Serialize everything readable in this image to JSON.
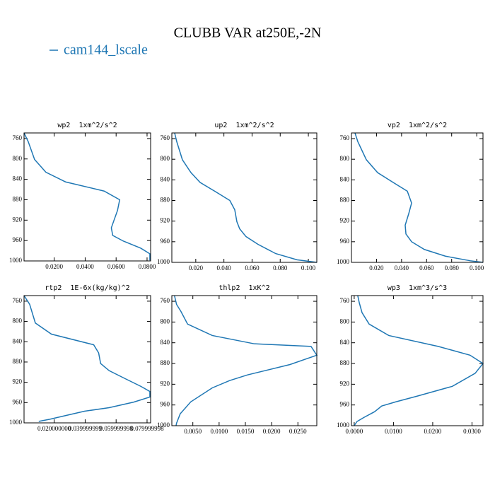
{
  "title": "CLUBB VAR at250E,-2N",
  "legend": {
    "label": "cam144_lscale",
    "color": "#1f77b4"
  },
  "chart_data": [
    {
      "type": "line",
      "title": "wp2  1xm^2/s^2",
      "color": "#1f77b4",
      "x": [
        0.0005,
        0.0032,
        0.0073,
        0.0146,
        0.0273,
        0.0523,
        0.0623,
        0.0609,
        0.0569,
        0.0578,
        0.0646,
        0.0759,
        0.0818,
        0.0818
      ],
      "values": [
        749,
        766,
        801,
        826,
        845,
        863,
        880,
        901,
        935,
        950,
        961,
        975,
        986,
        999
      ],
      "xlim": [
        0.0005,
        0.0823
      ],
      "ylim": [
        1000,
        749
      ],
      "xticks": [
        {
          "value": 0.02,
          "label": "0.0200"
        },
        {
          "value": 0.04,
          "label": "0.0400"
        },
        {
          "value": 0.06,
          "label": "0.0600"
        },
        {
          "value": 0.08,
          "label": "0.0800"
        }
      ],
      "yticks": [
        760,
        800,
        840,
        880,
        920,
        960,
        1000
      ]
    },
    {
      "type": "line",
      "title": "up2  1xm^2/s^2",
      "color": "#1f77b4",
      "x": [
        0.005,
        0.0065,
        0.0105,
        0.0166,
        0.0231,
        0.0341,
        0.0442,
        0.0477,
        0.0492,
        0.0512,
        0.0557,
        0.0642,
        0.0768,
        0.0919,
        0.106
      ],
      "values": [
        749,
        766,
        801,
        826,
        845,
        863,
        880,
        898,
        921,
        935,
        950,
        965,
        983,
        995,
        1000
      ],
      "xlim": [
        0.003,
        0.106
      ],
      "ylim": [
        1000,
        749
      ],
      "xticks": [
        {
          "value": 0.02,
          "label": "0.020"
        },
        {
          "value": 0.04,
          "label": "0.040"
        },
        {
          "value": 0.06,
          "label": "0.060"
        },
        {
          "value": 0.08,
          "label": "0.080"
        },
        {
          "value": 0.1,
          "label": "0.100"
        }
      ],
      "yticks": [
        760,
        800,
        840,
        880,
        920,
        960,
        1000
      ]
    },
    {
      "type": "line",
      "title": "vp2  1xm^2/s^2",
      "color": "#1f77b4",
      "x": [
        0.0028,
        0.0051,
        0.0119,
        0.0209,
        0.0333,
        0.0446,
        0.048,
        0.0458,
        0.0429,
        0.0435,
        0.048,
        0.0582,
        0.075,
        0.095,
        0.105
      ],
      "values": [
        749,
        766,
        801,
        826,
        845,
        862,
        885,
        905,
        928,
        945,
        960,
        975,
        988,
        997,
        1000
      ],
      "xlim": [
        0,
        0.105
      ],
      "ylim": [
        1000,
        749
      ],
      "xticks": [
        {
          "value": 0.02,
          "label": "0.020"
        },
        {
          "value": 0.04,
          "label": "0.040"
        },
        {
          "value": 0.06,
          "label": "0.060"
        },
        {
          "value": 0.08,
          "label": "0.080"
        },
        {
          "value": 0.1,
          "label": "0.100"
        }
      ],
      "yticks": [
        760,
        800,
        840,
        880,
        920,
        960,
        1000
      ]
    },
    {
      "type": "line",
      "title": "rtp2  1E-6x(kg/kg)^2",
      "color": "#1f77b4",
      "x": [
        0.0005,
        0.0041,
        0.0078,
        0.0182,
        0.0455,
        0.0487,
        0.05,
        0.0555,
        0.066,
        0.076,
        0.0818,
        0.0818,
        0.0714,
        0.0555,
        0.0396,
        0.0282,
        0.0169,
        0.01
      ],
      "values": [
        749,
        766,
        803,
        825,
        846,
        862,
        883,
        897,
        913,
        928,
        938,
        949,
        959,
        970,
        977,
        985,
        993,
        997
      ],
      "xlim": [
        0.0005,
        0.0823
      ],
      "ylim": [
        1000,
        749
      ],
      "xticks": [
        {
          "value": 0.02,
          "label": "0.020000000"
        },
        {
          "value": 0.04,
          "label": "0.039999999"
        },
        {
          "value": 0.06,
          "label": "0.059999998"
        },
        {
          "value": 0.08,
          "label": "0.079999998"
        }
      ],
      "yticks": [
        760,
        800,
        840,
        880,
        920,
        960,
        1000
      ]
    },
    {
      "type": "line",
      "title": "thlp2  1xK^2",
      "color": "#1f77b4",
      "x": [
        0.0015,
        0.0019,
        0.0027,
        0.004,
        0.0087,
        0.0167,
        0.0275,
        0.0286,
        0.0235,
        0.0154,
        0.012,
        0.0087,
        0.0046,
        0.0026,
        0.0019,
        0.0018
      ],
      "values": [
        749,
        766,
        779,
        804,
        826,
        842,
        847,
        864,
        882,
        902,
        913,
        927,
        954,
        977,
        995,
        1000
      ],
      "xlim": [
        0.001,
        0.0286
      ],
      "ylim": [
        1000,
        749
      ],
      "xticks": [
        {
          "value": 0.005,
          "label": "0.0050"
        },
        {
          "value": 0.01,
          "label": "0.0100"
        },
        {
          "value": 0.015,
          "label": "0.0150"
        },
        {
          "value": 0.02,
          "label": "0.0200"
        },
        {
          "value": 0.025,
          "label": "0.0250"
        }
      ],
      "yticks": [
        760,
        800,
        840,
        880,
        920,
        960,
        1000
      ]
    },
    {
      "type": "line",
      "title": "wp3  1xm^3/s^3",
      "color": "#1f77b4",
      "x": [
        0.0009,
        0.0013,
        0.002,
        0.0038,
        0.0088,
        0.0214,
        0.0295,
        0.0328,
        0.0308,
        0.025,
        0.016,
        0.0106,
        0.007,
        0.0052,
        0.0025,
        0.0007,
        0
      ],
      "values": [
        749,
        763,
        782,
        804,
        826,
        847,
        864,
        880,
        899,
        924,
        943,
        954,
        962,
        973,
        984,
        992,
        1000
      ],
      "xlim": [
        -0.0007,
        0.0328
      ],
      "ylim": [
        1000,
        749
      ],
      "xticks": [
        {
          "value": 0,
          "label": "0.0000"
        },
        {
          "value": 0.01,
          "label": "0.0100"
        },
        {
          "value": 0.02,
          "label": "0.0200"
        },
        {
          "value": 0.03,
          "label": "0.0300"
        }
      ],
      "yticks": [
        760,
        800,
        840,
        880,
        920,
        960,
        1000
      ]
    }
  ]
}
